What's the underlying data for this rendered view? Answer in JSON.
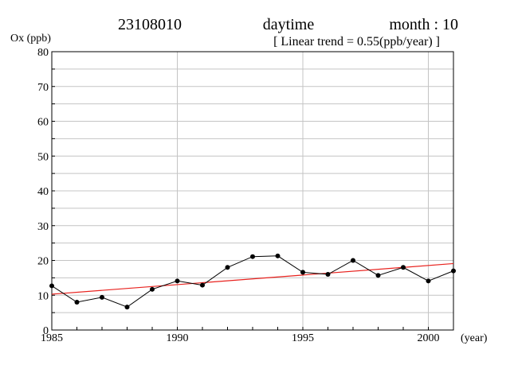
{
  "header": {
    "station": "23108010",
    "period": "daytime",
    "month": "month : 10",
    "trend": "[ Linear trend = 0.55(ppb/year) ]"
  },
  "chart_data": {
    "type": "line",
    "ylabel": "Ox (ppb)",
    "xlabel": "(year)",
    "xlim": [
      1985,
      2001
    ],
    "ylim": [
      0,
      80
    ],
    "xticks": [
      1985,
      1990,
      1995,
      2000
    ],
    "yticks": [
      0,
      10,
      20,
      30,
      40,
      50,
      60,
      70,
      80
    ],
    "grid": true,
    "series": [
      {
        "color": "#000000",
        "marker": "circle",
        "x": [
          1985,
          1986,
          1987,
          1988,
          1989,
          1990,
          1991,
          1992,
          1993,
          1994,
          1995,
          1996,
          1997,
          1998,
          1999,
          2000,
          2001
        ],
        "values": [
          12.7,
          8.0,
          9.4,
          6.6,
          11.7,
          14.1,
          12.9,
          18.0,
          21.1,
          21.3,
          16.6,
          16.0,
          20.0,
          15.7,
          18.0,
          14.1,
          17.0
        ]
      }
    ],
    "trend": {
      "color": "#e8211d",
      "x": [
        1985,
        2001
      ],
      "values": [
        10.3,
        19.1
      ]
    }
  }
}
